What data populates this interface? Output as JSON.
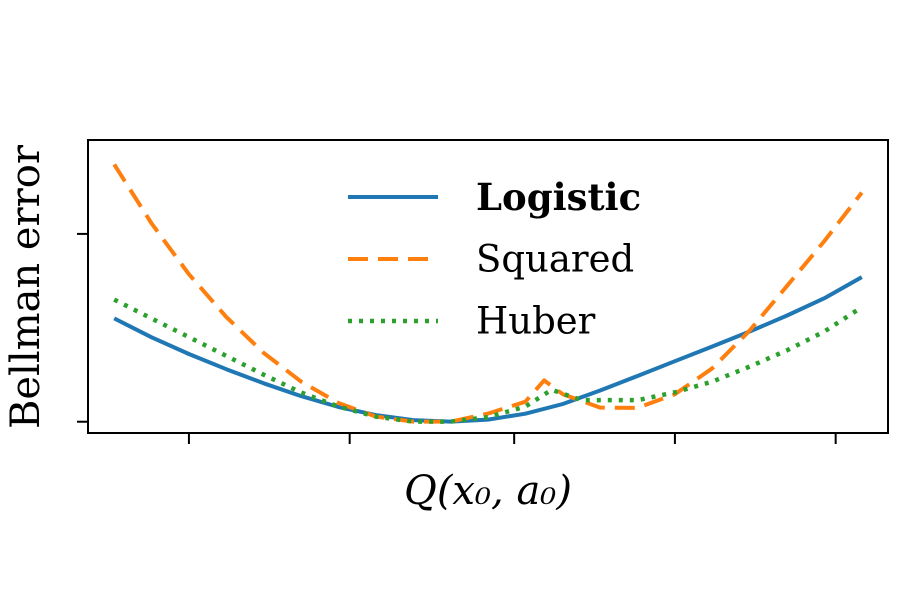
{
  "chart_data": {
    "type": "line",
    "title": "",
    "xlabel": "Q(x₀, a₀)",
    "ylabel": "Bellman error",
    "xlim": [
      -0.57,
      1.57
    ],
    "ylim": [
      -0.06,
      1.5
    ],
    "x_ticks": [
      -0.3,
      0.13,
      0.57,
      1.0,
      1.43
    ],
    "x_tick_labels": [
      "",
      "",
      "",
      "",
      ""
    ],
    "y_ticks": [
      0,
      1
    ],
    "y_tick_labels": [
      "",
      ""
    ],
    "grid": false,
    "legend_position": "top-center",
    "series": [
      {
        "name": "Logistic",
        "color": "#1f77b4",
        "dash": "solid",
        "bold_label": true,
        "x": [
          -0.5,
          -0.4,
          -0.3,
          -0.2,
          -0.1,
          0,
          0.1,
          0.2,
          0.3,
          0.4,
          0.5,
          0.6,
          0.7,
          0.8,
          0.9,
          1.0,
          1.1,
          1.2,
          1.3,
          1.4,
          1.5
        ],
        "y": [
          0.55,
          0.4495,
          0.3605,
          0.2795,
          0.2045,
          0.1365,
          0.0785,
          0.0355,
          0.0085,
          0.0005,
          0.0115,
          0.0425,
          0.0945,
          0.1665,
          0.2435,
          0.3225,
          0.4005,
          0.4805,
          0.5655,
          0.6575,
          0.77
        ]
      },
      {
        "name": "Squared",
        "color": "#ff7f0e",
        "dash": "dashed",
        "bold_label": false,
        "x": [
          -0.5,
          -0.4,
          -0.3,
          -0.2,
          -0.1,
          0,
          0.1,
          0.2,
          0.3,
          0.4,
          0.5,
          0.6,
          0.65,
          0.7,
          0.8,
          0.9,
          1.0,
          1.1,
          1.2,
          1.3,
          1.4,
          1.5
        ],
        "y": [
          1.37,
          1.0555,
          0.7855,
          0.5575,
          0.3665,
          0.2135,
          0.0995,
          0.0275,
          0.0005,
          0.0005,
          0.0435,
          0.1065,
          0.22,
          0.1465,
          0.0755,
          0.0735,
          0.1465,
          0.2845,
          0.4855,
          0.7235,
          0.9625,
          1.22
        ]
      },
      {
        "name": "Huber",
        "color": "#2ca02c",
        "dash": "dotted",
        "bold_label": false,
        "x": [
          -0.5,
          -0.4,
          -0.3,
          -0.2,
          -0.1,
          0,
          0.1,
          0.2,
          0.3,
          0.4,
          0.5,
          0.6,
          0.67,
          0.75,
          0.85,
          0.9,
          1.0,
          1.1,
          1.2,
          1.3,
          1.4,
          1.5
        ],
        "y": [
          0.65,
          0.5495,
          0.4505,
          0.3505,
          0.2505,
          0.1555,
          0.0805,
          0.0275,
          0.0005,
          0.0005,
          0.0245,
          0.0805,
          0.17,
          0.115,
          0.115,
          0.1145,
          0.1565,
          0.2135,
          0.2935,
          0.3805,
          0.4805,
          0.61
        ]
      }
    ]
  }
}
